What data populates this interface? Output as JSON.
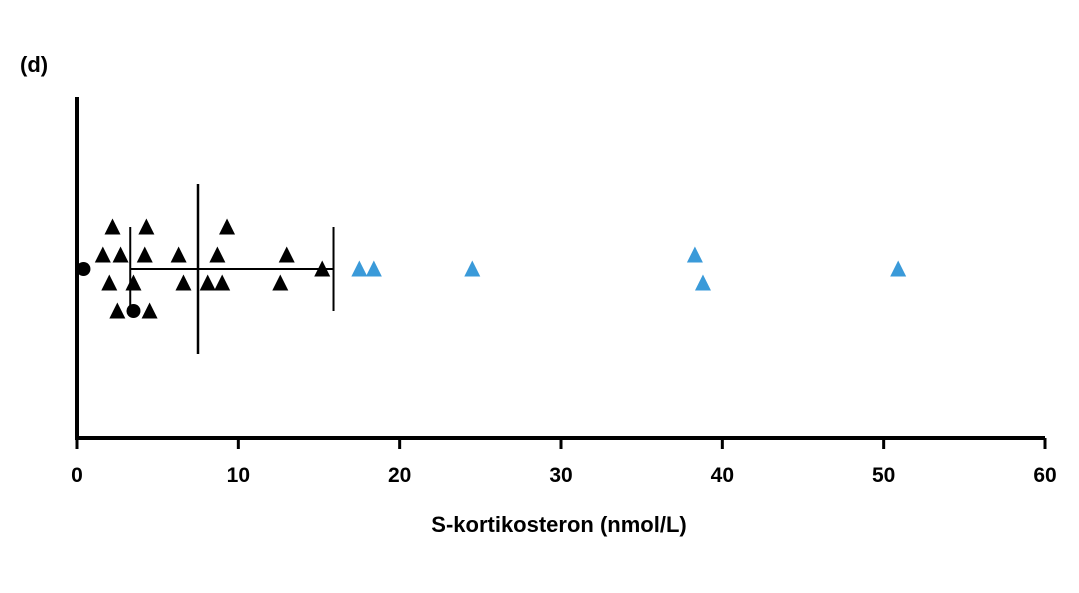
{
  "panel_label": "(d)",
  "chart_data": {
    "type": "scatter",
    "title": "",
    "xlabel": "S-kortikosteron (nmol/L)",
    "ylabel": "",
    "xlim": [
      0,
      60
    ],
    "xticks": [
      0,
      10,
      20,
      30,
      40,
      50,
      60
    ],
    "grid": false,
    "colors": {
      "black": "#000000",
      "blue": "#3a9ad9"
    },
    "series": [
      {
        "marker": "triangle",
        "color": "black",
        "points": [
          {
            "x": 2.2,
            "y": 3
          },
          {
            "x": 4.3,
            "y": 3
          },
          {
            "x": 9.3,
            "y": 3
          },
          {
            "x": 1.6,
            "y": 1
          },
          {
            "x": 2.7,
            "y": 1
          },
          {
            "x": 4.2,
            "y": 1
          },
          {
            "x": 6.3,
            "y": 1
          },
          {
            "x": 8.7,
            "y": 1
          },
          {
            "x": 13.0,
            "y": 1
          },
          {
            "x": 15.2,
            "y": 0
          },
          {
            "x": 2.0,
            "y": -1
          },
          {
            "x": 3.5,
            "y": -1
          },
          {
            "x": 6.6,
            "y": -1
          },
          {
            "x": 8.1,
            "y": -1
          },
          {
            "x": 9.0,
            "y": -1
          },
          {
            "x": 12.6,
            "y": -1
          },
          {
            "x": 2.5,
            "y": -3
          },
          {
            "x": 4.5,
            "y": -3
          }
        ]
      },
      {
        "marker": "circle",
        "color": "black",
        "points": [
          {
            "x": 0.4,
            "y": 0
          },
          {
            "x": 3.5,
            "y": -3
          }
        ]
      },
      {
        "marker": "triangle",
        "color": "blue",
        "points": [
          {
            "x": 17.5,
            "y": 0
          },
          {
            "x": 18.4,
            "y": 0
          },
          {
            "x": 24.5,
            "y": 0
          },
          {
            "x": 38.3,
            "y": 1
          },
          {
            "x": 38.8,
            "y": -1
          },
          {
            "x": 50.9,
            "y": 0
          }
        ]
      }
    ],
    "summary": {
      "median": 7.5,
      "range_low": 3.3,
      "range_high": 15.9
    }
  }
}
